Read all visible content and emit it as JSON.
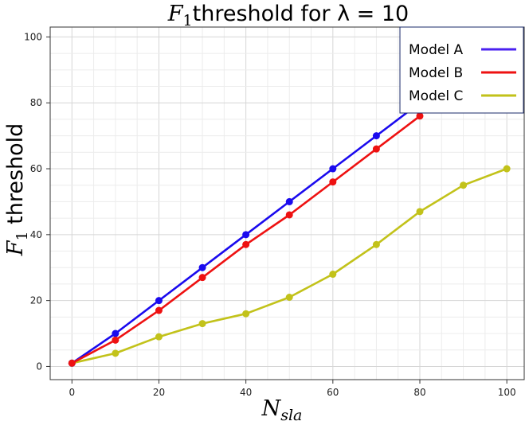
{
  "chart_data": {
    "type": "line",
    "title": {
      "main": "F",
      "sub": "1",
      "rest": "threshold for λ = 10"
    },
    "xlabel": {
      "main": "N",
      "sub": "sla"
    },
    "ylabel": {
      "main": "F",
      "sub": "1",
      "rest": " threshold"
    },
    "xlim": [
      -5,
      104
    ],
    "ylim": [
      -4,
      103
    ],
    "xticks": [
      0,
      20,
      40,
      60,
      80,
      100
    ],
    "yticks": [
      0,
      20,
      40,
      60,
      80,
      100
    ],
    "grid": true,
    "legend": "top-right",
    "series": [
      {
        "name": "Model A",
        "color": "#1a0aee",
        "legend_color": "#4a20f0",
        "x": [
          0,
          10,
          20,
          30,
          40,
          50,
          60,
          70,
          80
        ],
        "y": [
          1,
          10,
          20,
          30,
          40,
          50,
          60,
          70,
          80
        ]
      },
      {
        "name": "Model B",
        "color": "#ee1111",
        "legend_color": "#ee1111",
        "x": [
          0,
          10,
          20,
          30,
          40,
          50,
          60,
          70,
          80
        ],
        "y": [
          1,
          8,
          17,
          27,
          37,
          46,
          56,
          66,
          76
        ]
      },
      {
        "name": "Model C",
        "color": "#c2c21a",
        "legend_color": "#c2c21a",
        "x": [
          0,
          10,
          20,
          30,
          40,
          50,
          60,
          70,
          80,
          90,
          100
        ],
        "y": [
          1,
          4,
          9,
          13,
          16,
          21,
          28,
          37,
          47,
          55,
          60
        ]
      }
    ]
  }
}
